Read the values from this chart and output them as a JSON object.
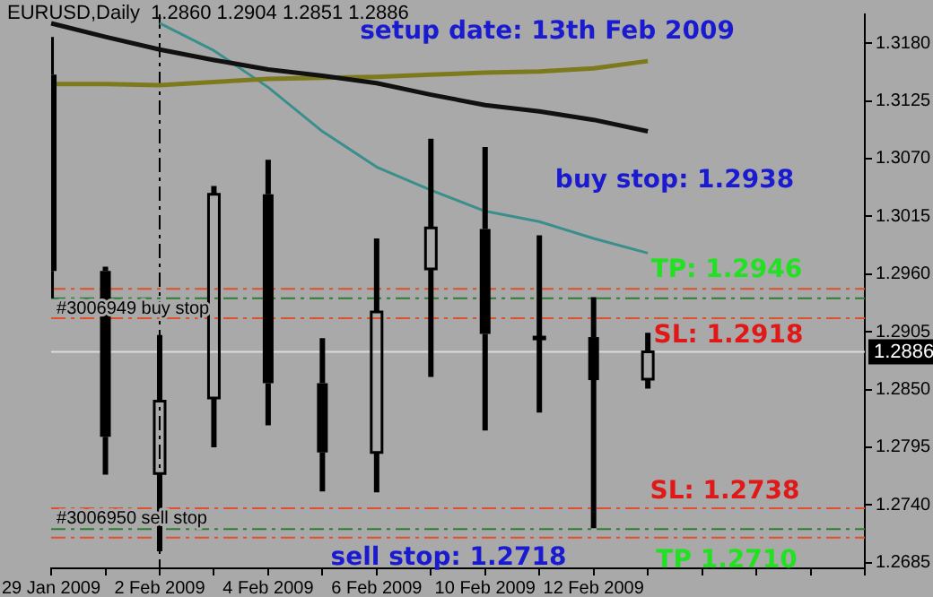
{
  "chart_data": {
    "type": "candlestick",
    "title": "EURUSD,Daily  1.2860 1.2904 1.2851 1.2886",
    "color": "#000000",
    "categories": [
      "29 Jan 2009",
      null,
      "2 Feb 2009",
      null,
      "4 Feb 2009",
      null,
      "6 Feb 2009",
      null,
      "10 Feb 2009",
      null,
      "12 Feb 2009",
      null,
      null,
      null,
      null,
      null
    ],
    "ohlc": [
      [
        1.315,
        1.3186,
        1.2937,
        1.2963
      ],
      [
        1.2963,
        1.2967,
        1.2769,
        1.2805
      ],
      [
        1.277,
        1.2902,
        1.2696,
        1.2839
      ],
      [
        1.2842,
        1.3044,
        1.2795,
        1.3036
      ],
      [
        1.3036,
        1.3069,
        1.2816,
        1.2856
      ],
      [
        1.2856,
        1.2899,
        1.2753,
        1.279
      ],
      [
        1.279,
        1.2994,
        1.2752,
        1.2924
      ],
      [
        1.2965,
        1.3089,
        1.2862,
        1.3004
      ],
      [
        1.3003,
        1.3081,
        1.2811,
        1.2903
      ],
      [
        1.29,
        1.2997,
        1.2828,
        1.29
      ],
      [
        1.29,
        1.2938,
        1.2718,
        1.2859
      ],
      [
        1.286,
        1.2904,
        1.2851,
        1.2886
      ],
      null,
      null,
      null,
      null
    ],
    "series": [
      {
        "type": "line",
        "color": "#111111",
        "values": [
          1.3199,
          1.3186,
          1.3174,
          1.3164,
          1.3155,
          1.3149,
          1.3142,
          1.3131,
          1.3121,
          1.3115,
          1.3107,
          1.3096,
          null,
          null,
          null,
          null
        ]
      },
      {
        "type": "line",
        "color": "#7d7a1e",
        "values": [
          1.3141,
          1.3141,
          1.314,
          1.3143,
          1.3146,
          1.3147,
          1.3148,
          1.315,
          1.3152,
          1.3153,
          1.3156,
          1.3163,
          null,
          null,
          null,
          null
        ]
      },
      {
        "type": "line",
        "color": "#3a8f8c",
        "values": [
          null,
          null,
          1.3199,
          1.3173,
          1.3138,
          1.3096,
          1.3062,
          1.304,
          1.302,
          1.301,
          1.2994,
          1.298,
          null,
          null,
          null,
          null
        ]
      }
    ],
    "ylim": [
      1.26797,
      1.32075
    ],
    "yticks": [
      {
        "value": 1.318,
        "label": "1.3180"
      },
      {
        "value": 1.3125,
        "label": "1.3125"
      },
      {
        "value": 1.307,
        "label": "1.3070"
      },
      {
        "value": 1.3015,
        "label": "1.3015"
      },
      {
        "value": 1.296,
        "label": "1.2960"
      },
      {
        "value": 1.2905,
        "label": "1.2905"
      },
      {
        "value": 1.285,
        "label": "1.2850"
      },
      {
        "value": 1.2795,
        "label": "1.2795"
      },
      {
        "value": 1.274,
        "label": "1.2740"
      },
      {
        "value": 1.2685,
        "label": "1.2685"
      }
    ],
    "ref_lines": [
      {
        "axis": "x",
        "value": "2 Feb 2009",
        "color": "#000000",
        "line_style": "dashed"
      },
      {
        "axis": "y",
        "value": 1.2946,
        "color": "#e0502a",
        "line_style": "dashed"
      },
      {
        "axis": "y",
        "value": 1.2937,
        "label": "#3006949 buy stop",
        "color": "#2e7d32",
        "line_style": "dashed"
      },
      {
        "axis": "y",
        "value": 1.2918,
        "color": "#e0502a",
        "line_style": "dashed"
      },
      {
        "axis": "y",
        "value": 1.2886,
        "label": "1.2886",
        "color": "#dcdcdc",
        "line_style": "solid"
      },
      {
        "axis": "y",
        "value": 1.2737,
        "color": "#e0502a",
        "line_style": "dashed"
      },
      {
        "axis": "y",
        "value": 1.2717,
        "label": "#3006950 sell stop",
        "color": "#2e7d32",
        "line_style": "dashed"
      },
      {
        "axis": "y",
        "value": 1.2709,
        "color": "#e0502a",
        "line_style": "dashed"
      }
    ],
    "annotations": [
      "setup date: 13th Feb 2009",
      "buy stop: 1.2938",
      {
        "text": "TP: 1.2946",
        "y": 1.2946
      },
      {
        "text": "SL: 1.2918",
        "y": 1.2918
      },
      {
        "text": "SL: 1.2738",
        "y": 1.2737
      },
      {
        "text": "sell stop: 1.2718",
        "y": 1.2717
      },
      {
        "text": "TP 1.2710",
        "y": 1.2709
      }
    ]
  }
}
